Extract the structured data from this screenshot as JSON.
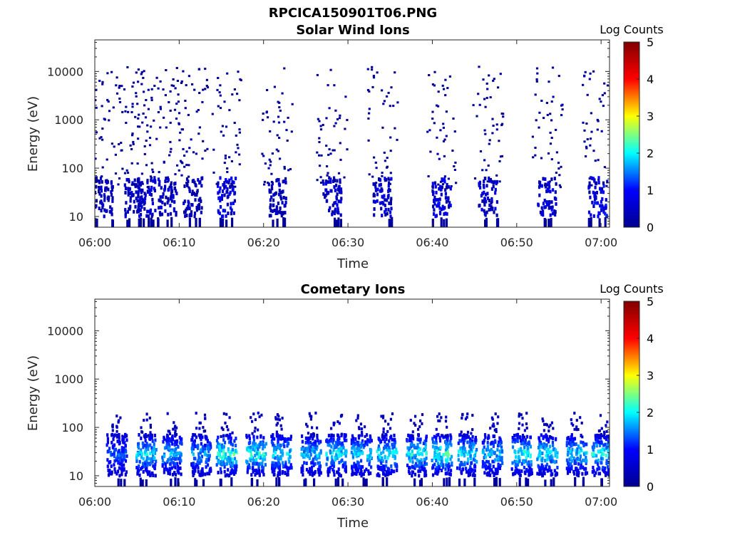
{
  "figure": {
    "title": "RPCICA150901T06.PNG"
  },
  "colormap": {
    "name": "jet",
    "stops": [
      "#00008f",
      "#0000ff",
      "#00ffff",
      "#ffff00",
      "#ff0000",
      "#800000"
    ]
  },
  "chart_data": [
    {
      "type": "heatmap",
      "title": "Solar Wind Ions",
      "xlabel": "Time",
      "ylabel": "Energy (eV)",
      "x_scale": "time",
      "y_scale": "log",
      "xlim": [
        "06:00",
        "07:01"
      ],
      "ylim": [
        6,
        45000
      ],
      "x_ticks": [
        "06:00",
        "06:10",
        "06:20",
        "06:30",
        "06:40",
        "06:50",
        "07:00"
      ],
      "y_ticks": [
        "10",
        "100",
        "1000",
        "10000"
      ],
      "colorbar": {
        "label": "Log Counts",
        "range": [
          0,
          5
        ],
        "ticks": [
          "0",
          "1",
          "2",
          "3",
          "4",
          "5"
        ]
      },
      "bursts_low_energy": [
        {
          "t": "06:01.0",
          "log_counts": 0.5
        },
        {
          "t": "06:04.5",
          "log_counts": 0.6
        },
        {
          "t": "06:06.0",
          "log_counts": 0.8
        },
        {
          "t": "06:08.5",
          "log_counts": 0.7
        },
        {
          "t": "06:11.5",
          "log_counts": 0.5
        },
        {
          "t": "06:15.5",
          "log_counts": 1.0
        },
        {
          "t": "06:21.5",
          "log_counts": 0.5
        },
        {
          "t": "06:28.0",
          "log_counts": 0.7
        },
        {
          "t": "06:34.0",
          "log_counts": 0.8
        },
        {
          "t": "06:41.0",
          "log_counts": 1.0
        },
        {
          "t": "06:46.5",
          "log_counts": 0.7
        },
        {
          "t": "06:53.5",
          "log_counts": 1.0
        },
        {
          "t": "06:59.5",
          "log_counts": 1.1
        }
      ]
    },
    {
      "type": "heatmap",
      "title": "Cometary Ions",
      "xlabel": "Time",
      "ylabel": "Energy (eV)",
      "x_scale": "time",
      "y_scale": "log",
      "xlim": [
        "06:00",
        "07:01"
      ],
      "ylim": [
        6,
        45000
      ],
      "x_ticks": [
        "06:00",
        "06:10",
        "06:20",
        "06:30",
        "06:40",
        "06:50",
        "07:00"
      ],
      "y_ticks": [
        "10",
        "100",
        "1000",
        "10000"
      ],
      "colorbar": {
        "label": "Log Counts",
        "range": [
          0,
          5
        ],
        "ticks": [
          "0",
          "1",
          "2",
          "3",
          "4",
          "5"
        ]
      },
      "bursts_low_energy": [
        {
          "t": "06:02.5",
          "log_counts": 1.2
        },
        {
          "t": "06:06.0",
          "log_counts": 1.8
        },
        {
          "t": "06:09.0",
          "log_counts": 1.6
        },
        {
          "t": "06:12.5",
          "log_counts": 1.5
        },
        {
          "t": "06:15.5",
          "log_counts": 2.2
        },
        {
          "t": "06:19.0",
          "log_counts": 2.1
        },
        {
          "t": "06:22.0",
          "log_counts": 1.8
        },
        {
          "t": "06:25.5",
          "log_counts": 1.7
        },
        {
          "t": "06:28.5",
          "log_counts": 1.9
        },
        {
          "t": "06:31.5",
          "log_counts": 1.8
        },
        {
          "t": "06:34.5",
          "log_counts": 1.9
        },
        {
          "t": "06:38.0",
          "log_counts": 2.0
        },
        {
          "t": "06:41.0",
          "log_counts": 2.2
        },
        {
          "t": "06:44.0",
          "log_counts": 1.9
        },
        {
          "t": "06:47.0",
          "log_counts": 1.7
        },
        {
          "t": "06:50.5",
          "log_counts": 2.1
        },
        {
          "t": "06:53.5",
          "log_counts": 1.9
        },
        {
          "t": "06:57.0",
          "log_counts": 1.8
        },
        {
          "t": "07:00.0",
          "log_counts": 2.0
        }
      ]
    }
  ]
}
